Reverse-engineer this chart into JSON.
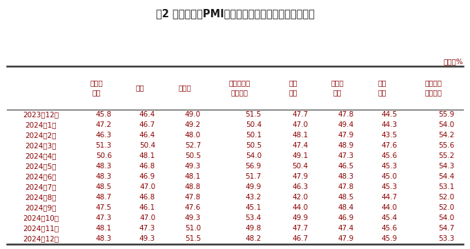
{
  "title": "表2 中国制造业PMI其他相关指标情况（经季节调整）",
  "unit_label": "单位：%",
  "col_headers": [
    "新出口\n订单",
    "进口",
    "采购量",
    "主要原材料\n购进价格",
    "出厂\n价格",
    "产成品\n库存",
    "在手\n订单",
    "生产经营\n活动预期"
  ],
  "row_labels": [
    "2023年12月",
    "2024年1月",
    "2024年2月",
    "2024年3月",
    "2024年4月",
    "2024年5月",
    "2024年6月",
    "2024年7月",
    "2024年8月",
    "2024年9月",
    "2024年10月",
    "2024年11月",
    "2024年12月"
  ],
  "data": [
    [
      45.8,
      46.4,
      49.0,
      51.5,
      47.7,
      47.8,
      44.5,
      55.9
    ],
    [
      47.2,
      46.7,
      49.2,
      50.4,
      47.0,
      49.4,
      44.3,
      54.0
    ],
    [
      46.3,
      46.4,
      48.0,
      50.1,
      48.1,
      47.9,
      43.5,
      54.2
    ],
    [
      51.3,
      50.4,
      52.7,
      50.5,
      47.4,
      48.9,
      47.6,
      55.6
    ],
    [
      50.6,
      48.1,
      50.5,
      54.0,
      49.1,
      47.3,
      45.6,
      55.2
    ],
    [
      48.3,
      46.8,
      49.3,
      56.9,
      50.4,
      46.5,
      45.3,
      54.3
    ],
    [
      48.3,
      46.9,
      48.1,
      51.7,
      47.9,
      48.3,
      45.0,
      54.4
    ],
    [
      48.5,
      47.0,
      48.8,
      49.9,
      46.3,
      47.8,
      45.3,
      53.1
    ],
    [
      48.7,
      46.8,
      47.8,
      43.2,
      42.0,
      48.5,
      44.7,
      52.0
    ],
    [
      47.5,
      46.1,
      47.6,
      45.1,
      44.0,
      48.4,
      44.0,
      52.0
    ],
    [
      47.3,
      47.0,
      49.3,
      53.4,
      49.9,
      46.9,
      45.4,
      54.0
    ],
    [
      48.1,
      47.3,
      51.0,
      49.8,
      47.7,
      47.4,
      45.6,
      54.7
    ],
    [
      48.3,
      49.3,
      51.5,
      48.2,
      46.7,
      47.9,
      45.9,
      53.3
    ]
  ],
  "bg_color": "#ffffff",
  "header_text_color": "#8B0000",
  "row_label_color": "#8B0000",
  "data_color": "#8B0000",
  "title_color": "#1a1a1a",
  "line_color": "#555555",
  "unit_color": "#8B0000"
}
